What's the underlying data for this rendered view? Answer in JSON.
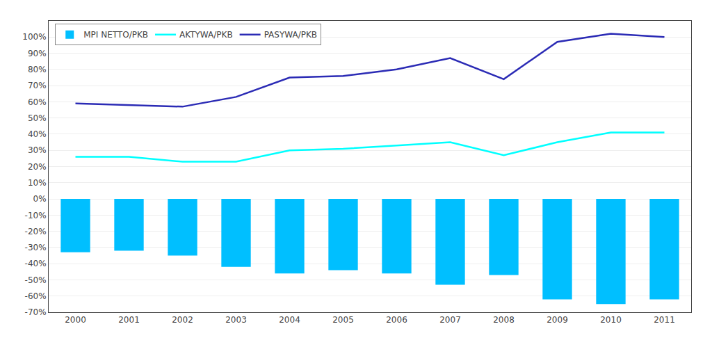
{
  "chart_data": {
    "type": "bar",
    "categories": [
      "2000",
      "2001",
      "2002",
      "2003",
      "2004",
      "2005",
      "2006",
      "2007",
      "2008",
      "2009",
      "2010",
      "2011"
    ],
    "series": [
      {
        "name": "MPI NETTO/PKB",
        "type": "bar",
        "color": "#00BFFF",
        "values": [
          -33,
          -32,
          -35,
          -42,
          -46,
          -44,
          -46,
          -53,
          -47,
          -62,
          -65,
          -62
        ]
      },
      {
        "name": "AKTYWA/PKB",
        "type": "line",
        "color": "#00FFFF",
        "values": [
          26,
          26,
          23,
          23,
          30,
          31,
          33,
          35,
          27,
          35,
          41,
          41
        ]
      },
      {
        "name": "PASYWA/PKB",
        "type": "line",
        "color": "#2B2BB5",
        "values": [
          59,
          58,
          57,
          63,
          75,
          76,
          80,
          87,
          74,
          97,
          102,
          100
        ]
      }
    ],
    "ylim": [
      -70,
      110
    ],
    "yticks": [
      {
        "value": -70,
        "label": "-70%"
      },
      {
        "value": -60,
        "label": "-60%"
      },
      {
        "value": -50,
        "label": "-50%"
      },
      {
        "value": -40,
        "label": "-40%"
      },
      {
        "value": -30,
        "label": "-30%"
      },
      {
        "value": -20,
        "label": "-20%"
      },
      {
        "value": -10,
        "label": "-10%"
      },
      {
        "value": 0,
        "label": "0%"
      },
      {
        "value": 10,
        "label": "10%"
      },
      {
        "value": 20,
        "label": "20%"
      },
      {
        "value": 30,
        "label": "30%"
      },
      {
        "value": 40,
        "label": "40%"
      },
      {
        "value": 50,
        "label": "50%"
      },
      {
        "value": 60,
        "label": "60%"
      },
      {
        "value": 70,
        "label": "70%"
      },
      {
        "value": 80,
        "label": "80%"
      },
      {
        "value": 90,
        "label": "90%"
      },
      {
        "value": 100,
        "label": "100%"
      }
    ],
    "grid": true,
    "legend": "upper left"
  }
}
